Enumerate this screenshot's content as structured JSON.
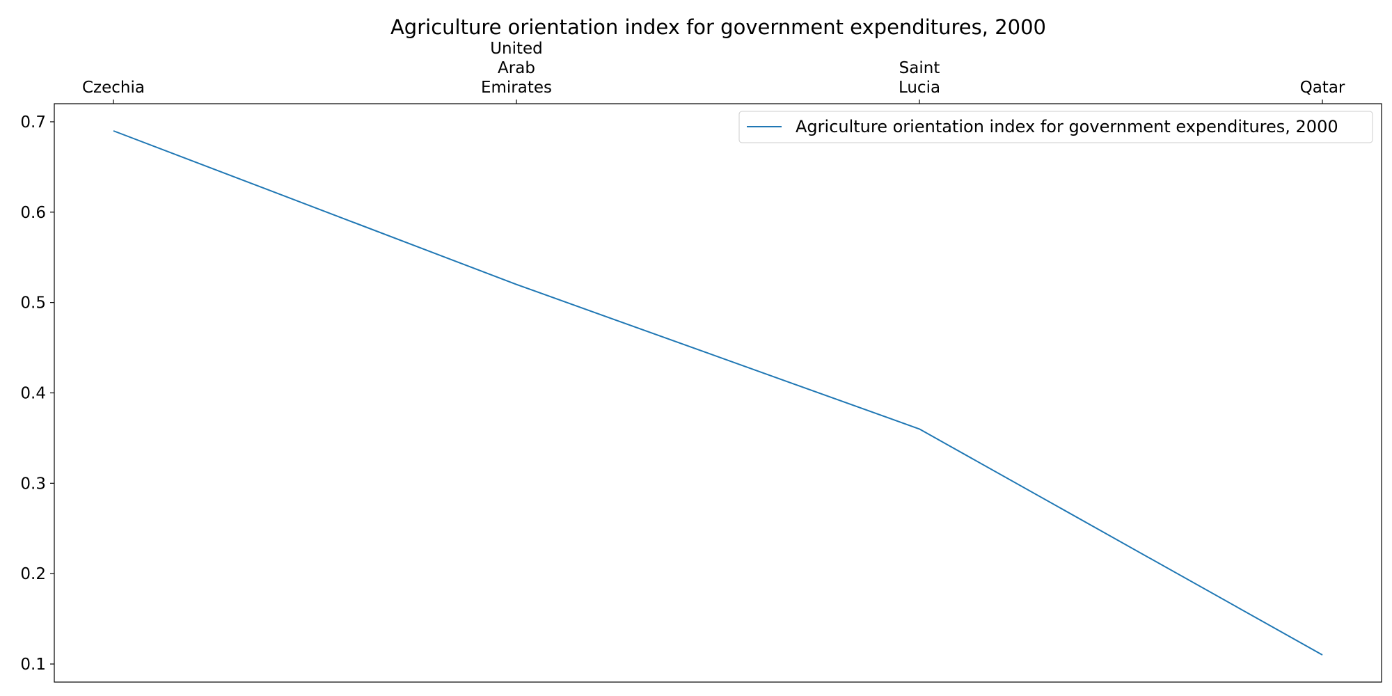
{
  "chart_data": {
    "type": "line",
    "title": "Agriculture orientation index for government expenditures, 2000",
    "xlabel": "",
    "ylabel": "",
    "categories": [
      "Czechia",
      "United Arab Emirates",
      "Saint Lucia",
      "Qatar"
    ],
    "category_lines": [
      [
        "Czechia"
      ],
      [
        "United",
        "Arab",
        "Emirates"
      ],
      [
        "Saint",
        "Lucia"
      ],
      [
        "Qatar"
      ]
    ],
    "x_tick_position": "top",
    "series": [
      {
        "name": "Agriculture orientation index for government expenditures, 2000",
        "values": [
          0.69,
          0.52,
          0.36,
          0.11
        ],
        "color": "#1f77b4"
      }
    ],
    "ylim": [
      0.08,
      0.72
    ],
    "yticks": [
      0.1,
      0.2,
      0.3,
      0.4,
      0.5,
      0.6,
      0.7
    ],
    "ytick_labels": [
      "0.1",
      "0.2",
      "0.3",
      "0.4",
      "0.5",
      "0.6",
      "0.7"
    ],
    "legend_position": "top-right",
    "grid": false
  }
}
